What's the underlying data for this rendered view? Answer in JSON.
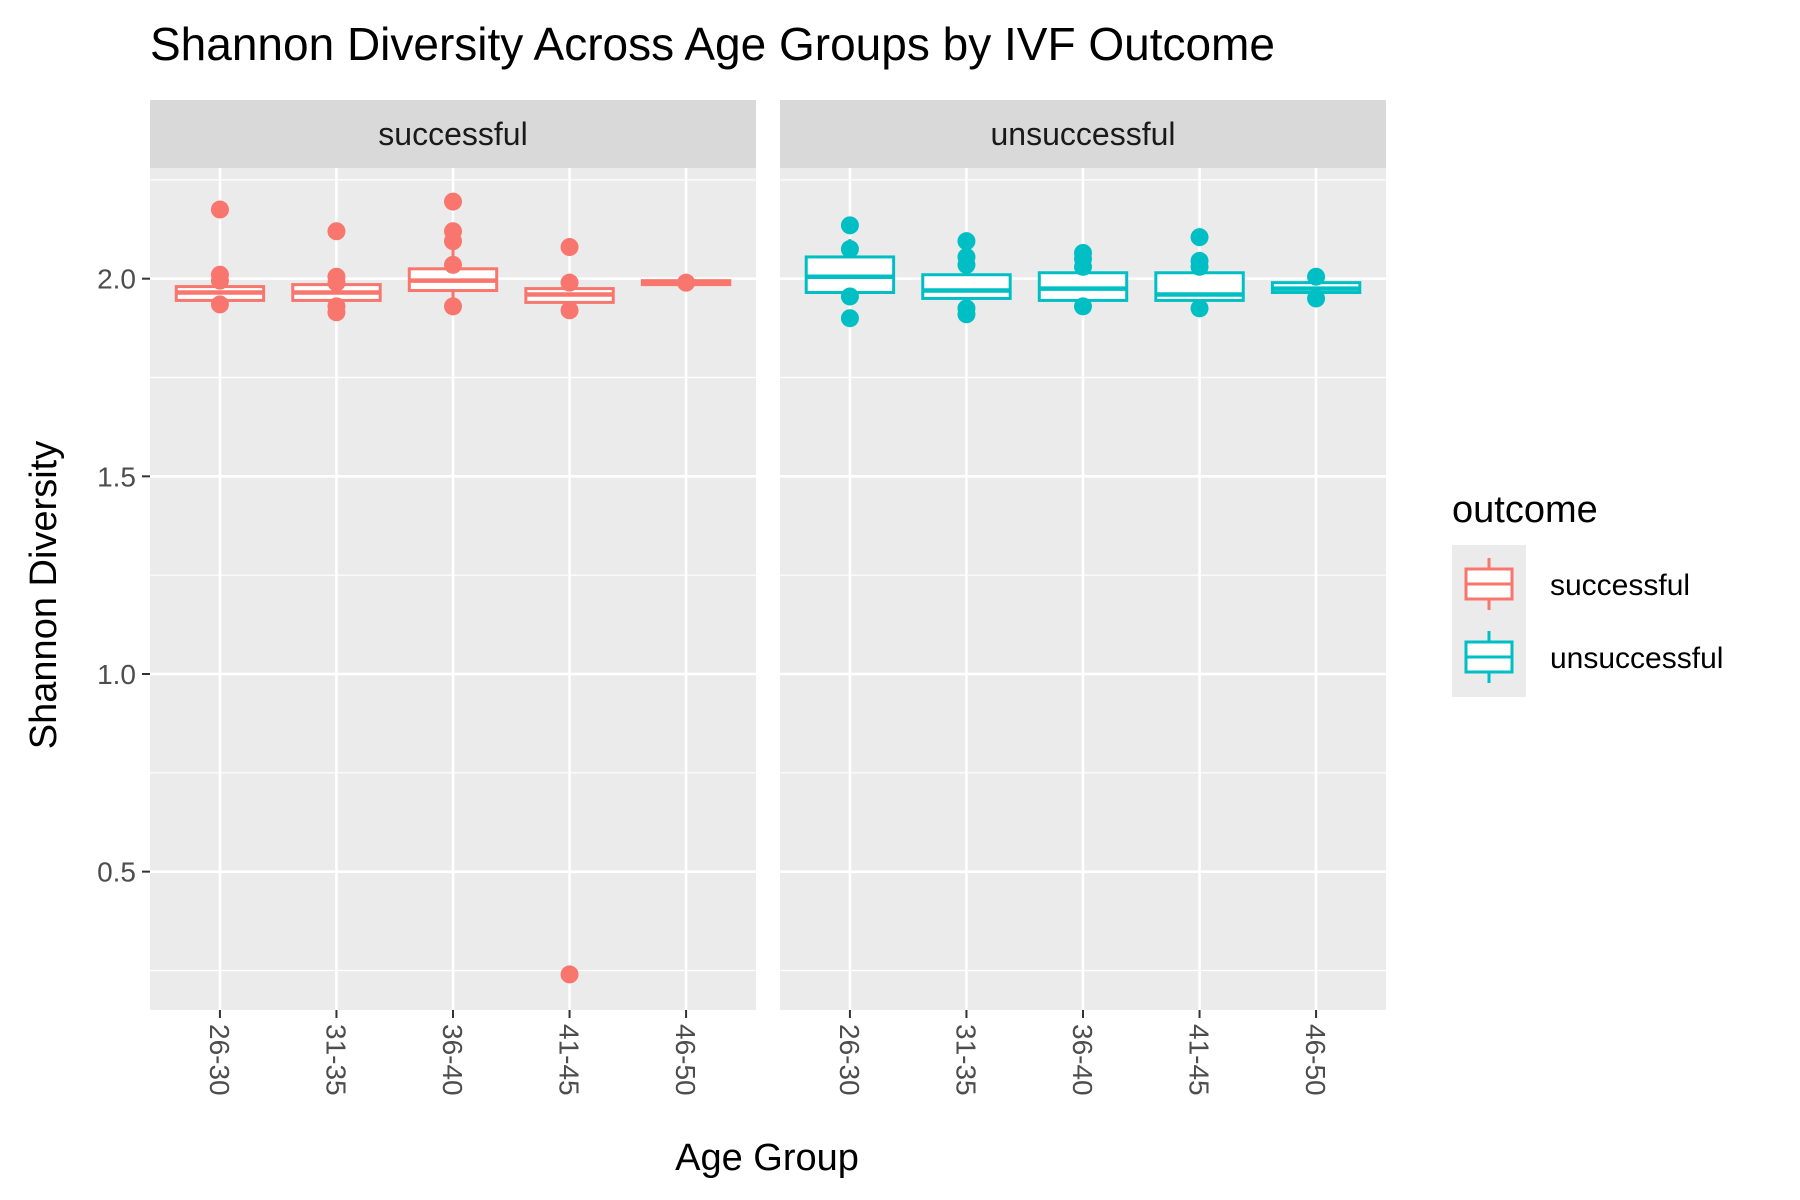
{
  "chart_data": {
    "type": "boxplot",
    "title": "Shannon Diversity Across Age Groups by IVF Outcome",
    "xlabel": "Age Group",
    "ylabel": "Shannon Diversity",
    "ylim": [
      0.15,
      2.28
    ],
    "y_ticks": [
      0.5,
      1.0,
      1.5,
      2.0
    ],
    "y_tick_labels": [
      "0.5",
      "1.0",
      "1.5",
      "2.0"
    ],
    "categories": [
      "26-30",
      "31-35",
      "36-40",
      "41-45",
      "46-50"
    ],
    "grid": true,
    "legend": {
      "title": "outcome",
      "position": "right",
      "entries": [
        {
          "label": "successful",
          "color": "#F8766D"
        },
        {
          "label": "unsuccessful",
          "color": "#00BFC4"
        }
      ]
    },
    "panels": [
      {
        "strip": "successful",
        "color": "#F8766D",
        "boxes": [
          {
            "category": "26-30",
            "whisker_low": 1.94,
            "q1": 1.945,
            "median": 1.965,
            "q3": 1.98,
            "whisker_high": 1.99,
            "outliers": [
              2.175,
              2.01,
              1.995,
              1.935
            ]
          },
          {
            "category": "31-35",
            "whisker_low": 1.925,
            "q1": 1.945,
            "median": 1.965,
            "q3": 1.985,
            "whisker_high": 2.0,
            "outliers": [
              2.12,
              2.005,
              1.99,
              1.93,
              1.915
            ]
          },
          {
            "category": "36-40",
            "whisker_low": 1.935,
            "q1": 1.97,
            "median": 1.995,
            "q3": 2.025,
            "whisker_high": 2.08,
            "outliers": [
              2.195,
              2.12,
              2.095,
              2.035,
              1.93
            ]
          },
          {
            "category": "41-45",
            "whisker_low": 1.93,
            "q1": 1.94,
            "median": 1.96,
            "q3": 1.975,
            "whisker_high": 1.99,
            "outliers": [
              2.08,
              1.99,
              1.92,
              0.24
            ]
          },
          {
            "category": "46-50",
            "whisker_low": 1.985,
            "q1": 1.985,
            "median": 1.99,
            "q3": 1.995,
            "whisker_high": 1.995,
            "outliers": [
              1.99
            ]
          }
        ]
      },
      {
        "strip": "unsuccessful",
        "color": "#00BFC4",
        "boxes": [
          {
            "category": "26-30",
            "whisker_low": 1.94,
            "q1": 1.965,
            "median": 2.005,
            "q3": 2.055,
            "whisker_high": 2.1,
            "outliers": [
              2.135,
              2.075,
              1.955,
              1.9
            ]
          },
          {
            "category": "31-35",
            "whisker_low": 1.93,
            "q1": 1.95,
            "median": 1.97,
            "q3": 2.01,
            "whisker_high": 2.04,
            "outliers": [
              2.095,
              2.055,
              2.035,
              1.925,
              1.91
            ]
          },
          {
            "category": "36-40",
            "whisker_low": 1.935,
            "q1": 1.945,
            "median": 1.975,
            "q3": 2.015,
            "whisker_high": 2.05,
            "outliers": [
              2.065,
              2.05,
              2.03,
              1.93
            ]
          },
          {
            "category": "41-45",
            "whisker_low": 1.935,
            "q1": 1.945,
            "median": 1.96,
            "q3": 2.015,
            "whisker_high": 2.04,
            "outliers": [
              2.105,
              2.045,
              2.03,
              1.925
            ]
          },
          {
            "category": "46-50",
            "whisker_low": 1.96,
            "q1": 1.965,
            "median": 1.975,
            "q3": 1.99,
            "whisker_high": 2.0,
            "outliers": [
              2.005,
              1.95
            ]
          }
        ]
      }
    ]
  }
}
